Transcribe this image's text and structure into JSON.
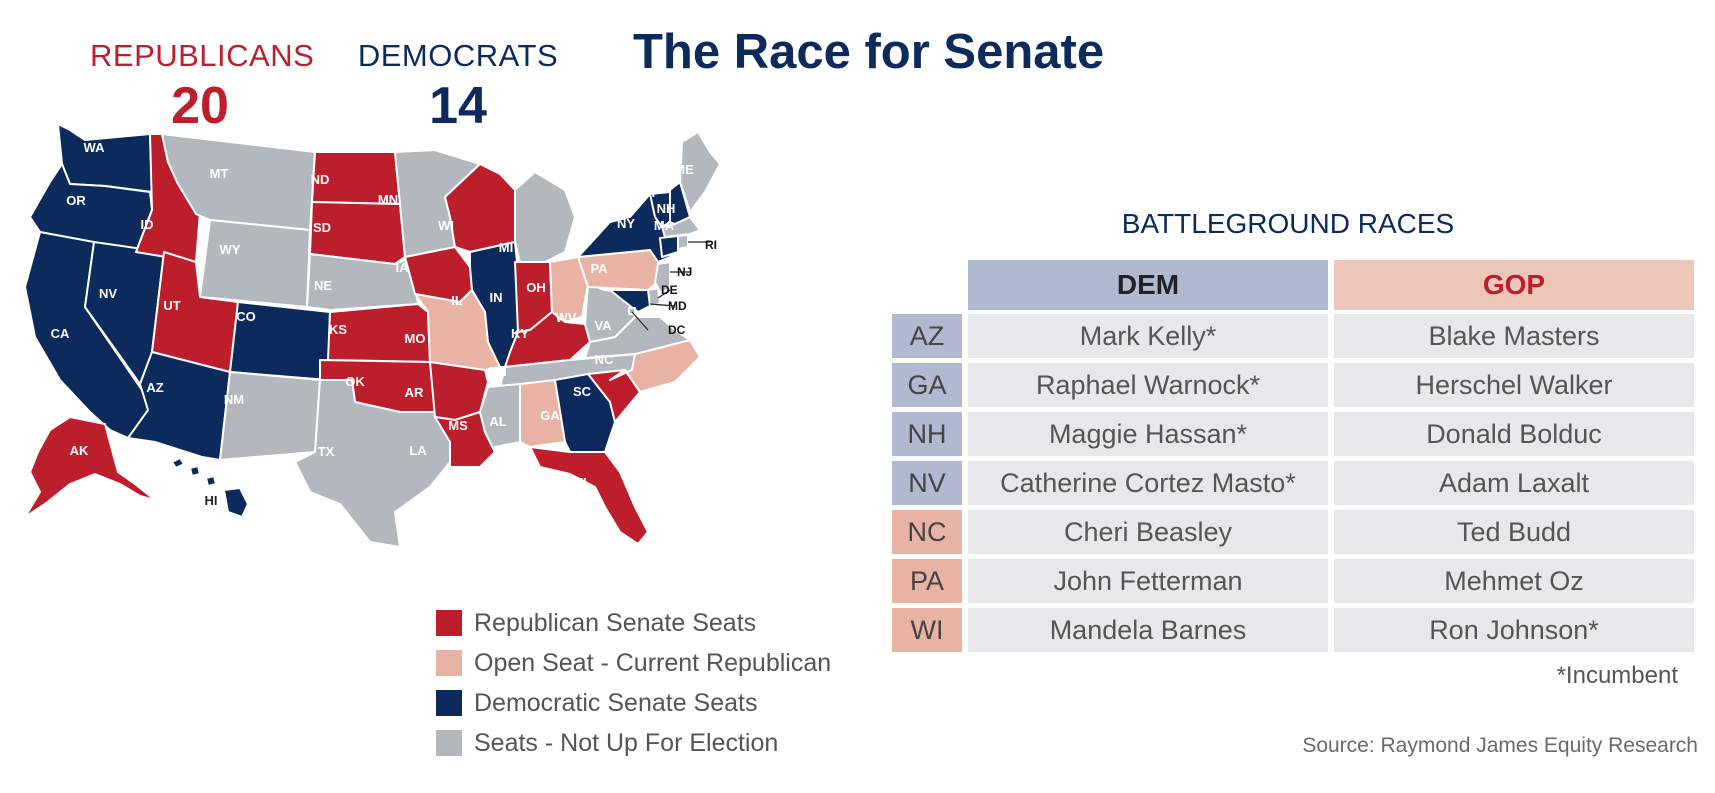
{
  "header": {
    "republicans_label": "REPUBLICANS",
    "republicans_count": "20",
    "democrats_label": "DEMOCRATS",
    "democrats_count": "14",
    "title": "The Race for Senate"
  },
  "colors": {
    "republican": "#bd1e2c",
    "open_seat_republican": "#e8b2a4",
    "democratic": "#0c2a5c",
    "not_up": "#b3b8be",
    "dem_header": "#b1b9d0",
    "gop_header": "#edc6b9"
  },
  "map": {
    "states": {
      "WA": "democratic",
      "OR": "democratic",
      "CA": "democratic",
      "NV": "democratic",
      "ID": "republican",
      "MT": "not_up",
      "WY": "not_up",
      "UT": "republican",
      "CO": "democratic",
      "AZ": "democratic",
      "NM": "not_up",
      "ND": "republican",
      "SD": "republican",
      "NE": "not_up",
      "KS": "republican",
      "OK": "republican",
      "TX": "not_up",
      "MN": "not_up",
      "IA": "republican",
      "MO": "open_seat_republican",
      "AR": "republican",
      "LA": "republican",
      "WI": "republican",
      "IL": "democratic",
      "MI": "not_up",
      "IN": "republican",
      "OH": "open_seat_republican",
      "KY": "republican",
      "TN": "not_up",
      "MS": "not_up",
      "AL": "open_seat_republican",
      "GA": "democratic",
      "FL": "republican",
      "SC": "republican",
      "NC": "open_seat_republican",
      "VA": "not_up",
      "WV": "not_up",
      "PA": "open_seat_republican",
      "NY": "democratic",
      "VT": "democratic",
      "NH": "democratic",
      "ME": "not_up",
      "MA": "not_up",
      "RI": "not_up",
      "CT": "democratic",
      "NJ": "not_up",
      "DE": "not_up",
      "MD": "democratic",
      "DC": "not_up",
      "AK": "republican",
      "HI": "democratic"
    },
    "callouts": [
      "RI",
      "NJ",
      "DE",
      "MD",
      "DC"
    ]
  },
  "legend": [
    {
      "label": "Republican Senate Seats",
      "color_key": "republican"
    },
    {
      "label": "Open Seat - Current Republican",
      "color_key": "open_seat_republican"
    },
    {
      "label": "Democratic Senate Seats",
      "color_key": "democratic"
    },
    {
      "label": "Seats - Not Up For Election",
      "color_key": "not_up"
    }
  ],
  "battleground": {
    "title": "BATTLEGROUND RACES",
    "dem_header": "DEM",
    "gop_header": "GOP",
    "rows": [
      {
        "state": "AZ",
        "dem": "Mark Kelly*",
        "gop": "Blake Masters",
        "held_by": "democratic"
      },
      {
        "state": "GA",
        "dem": "Raphael Warnock*",
        "gop": "Herschel Walker",
        "held_by": "democratic"
      },
      {
        "state": "NH",
        "dem": "Maggie Hassan*",
        "gop": "Donald Bolduc",
        "held_by": "democratic"
      },
      {
        "state": "NV",
        "dem": "Catherine Cortez Masto*",
        "gop": "Adam Laxalt",
        "held_by": "democratic"
      },
      {
        "state": "NC",
        "dem": "Cheri Beasley",
        "gop": "Ted Budd",
        "held_by": "republican"
      },
      {
        "state": "PA",
        "dem": "John Fetterman",
        "gop": "Mehmet Oz",
        "held_by": "republican"
      },
      {
        "state": "WI",
        "dem": "Mandela Barnes",
        "gop": "Ron Johnson*",
        "held_by": "republican"
      }
    ]
  },
  "footnote": "*Incumbent",
  "source": "Source: Raymond James Equity Research"
}
